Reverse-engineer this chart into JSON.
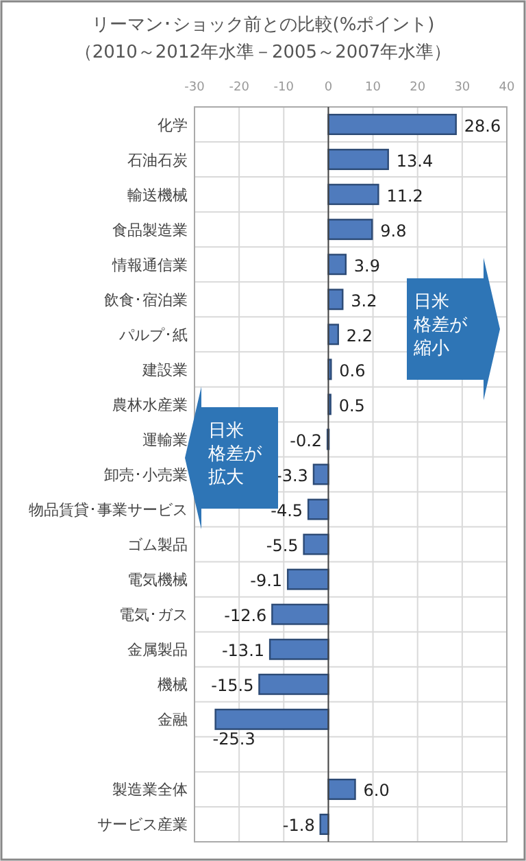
{
  "chart_data": {
    "type": "bar",
    "orientation": "horizontal",
    "title": "リーマン･ショック前との比較(%ポイント)",
    "subtitle": "（2010～2012年水準－2005～2007年水準）",
    "categories": [
      "化学",
      "石油石炭",
      "輸送機械",
      "食品製造業",
      "情報通信業",
      "飲食･宿泊業",
      "パルプ･紙",
      "建設業",
      "農林水産業",
      "運輸業",
      "卸売･小売業",
      "物品賃貸･事業サービス",
      "ゴム製品",
      "電気機械",
      "電気･ガス",
      "金属製品",
      "機械",
      "金融",
      null,
      "製造業全体",
      "サービス産業"
    ],
    "values": [
      28.6,
      13.4,
      11.2,
      9.8,
      3.9,
      3.2,
      2.2,
      0.6,
      0.5,
      -0.2,
      -3.3,
      -4.5,
      -5.5,
      -9.1,
      -12.6,
      -13.1,
      -15.5,
      -25.3,
      null,
      6.0,
      -1.8
    ],
    "value_labels": [
      "28.6",
      "13.4",
      "11.2",
      "9.8",
      "3.9",
      "3.2",
      "2.2",
      "0.6",
      "0.5",
      "-0.2",
      "-3.3",
      "-4.5",
      "-5.5",
      "-9.1",
      "-12.6",
      "-13.1",
      "-15.5",
      "-25.3",
      null,
      "6.0",
      "-1.8"
    ],
    "color": "#4f7bbd",
    "xlim": [
      -30,
      40
    ],
    "xticks": [
      -30,
      -20,
      -10,
      0,
      10,
      20,
      30,
      40
    ],
    "grid": true,
    "annotations": [
      "日米格差が縮小",
      "日米格差が拡大"
    ]
  }
}
